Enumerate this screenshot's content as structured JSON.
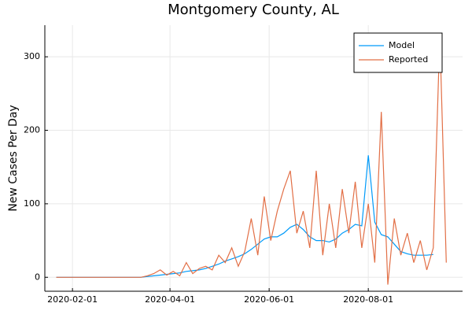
{
  "chart_data": {
    "type": "line",
    "title": "Montgomery County, AL",
    "ylabel": "New Cases Per Day",
    "x": [
      "2020-01-22",
      "2020-01-26",
      "2020-01-30",
      "2020-02-03",
      "2020-02-07",
      "2020-02-11",
      "2020-02-15",
      "2020-02-19",
      "2020-02-23",
      "2020-02-27",
      "2020-03-02",
      "2020-03-06",
      "2020-03-10",
      "2020-03-14",
      "2020-03-18",
      "2020-03-22",
      "2020-03-26",
      "2020-03-30",
      "2020-04-03",
      "2020-04-07",
      "2020-04-11",
      "2020-04-15",
      "2020-04-19",
      "2020-04-23",
      "2020-04-27",
      "2020-05-01",
      "2020-05-05",
      "2020-05-09",
      "2020-05-13",
      "2020-05-17",
      "2020-05-21",
      "2020-05-25",
      "2020-05-29",
      "2020-06-02",
      "2020-06-06",
      "2020-06-10",
      "2020-06-14",
      "2020-06-18",
      "2020-06-22",
      "2020-06-26",
      "2020-06-30",
      "2020-07-04",
      "2020-07-08",
      "2020-07-12",
      "2020-07-16",
      "2020-07-20",
      "2020-07-24",
      "2020-07-28",
      "2020-08-01",
      "2020-08-05",
      "2020-08-09",
      "2020-08-13",
      "2020-08-17",
      "2020-08-21",
      "2020-08-25",
      "2020-08-29",
      "2020-09-02",
      "2020-09-06",
      "2020-09-10",
      "2020-09-14",
      "2020-09-18"
    ],
    "series": [
      {
        "name": "Model",
        "color": "#009af9",
        "values": [
          0,
          0,
          0,
          0,
          0,
          0,
          0,
          0,
          0,
          0,
          0,
          0,
          0,
          0,
          1,
          2,
          3,
          4,
          5,
          6,
          8,
          9,
          10,
          12,
          15,
          18,
          22,
          25,
          28,
          32,
          38,
          45,
          52,
          55,
          55,
          60,
          68,
          72,
          65,
          55,
          50,
          50,
          48,
          52,
          60,
          65,
          72,
          70,
          166,
          75,
          58,
          55,
          45,
          35,
          32,
          30,
          30,
          30,
          31,
          null,
          null
        ]
      },
      {
        "name": "Reported",
        "color": "#e26f46",
        "values": [
          0,
          0,
          0,
          0,
          0,
          0,
          0,
          0,
          0,
          0,
          0,
          0,
          0,
          0,
          2,
          5,
          10,
          3,
          8,
          2,
          20,
          5,
          12,
          15,
          10,
          30,
          20,
          40,
          15,
          35,
          80,
          30,
          110,
          50,
          90,
          120,
          145,
          60,
          90,
          40,
          145,
          30,
          100,
          40,
          120,
          60,
          130,
          40,
          100,
          20,
          225,
          -10,
          80,
          30,
          60,
          20,
          50,
          10,
          40,
          330,
          20
        ]
      }
    ],
    "xlim": [
      "2020-01-15",
      "2020-09-28"
    ],
    "xticks": [
      "2020-02-01",
      "2020-04-01",
      "2020-06-01",
      "2020-08-01"
    ],
    "ylim": [
      -19,
      343
    ],
    "yticks": [
      0,
      100,
      200,
      300
    ],
    "grid": true,
    "legend": "top-right"
  }
}
